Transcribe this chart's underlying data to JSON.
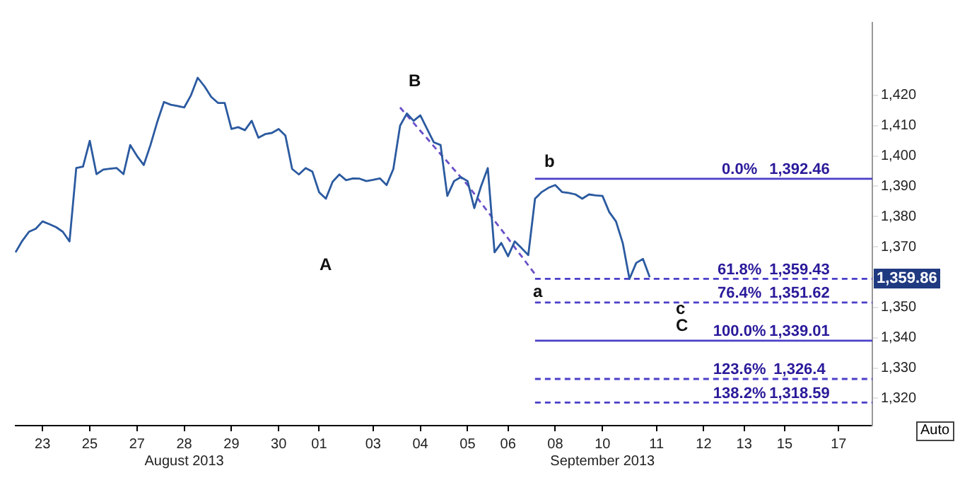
{
  "chart_data": {
    "type": "line",
    "ylim": [
      1311,
      1444
    ],
    "categories": [
      null,
      null,
      null,
      null,
      "23",
      null,
      null,
      null,
      null,
      null,
      null,
      "25",
      null,
      null,
      null,
      null,
      null,
      null,
      "27",
      null,
      null,
      null,
      null,
      null,
      null,
      "28\nAugust 2013",
      null,
      null,
      null,
      null,
      null,
      null,
      "29",
      null,
      null,
      null,
      null,
      null,
      null,
      "30",
      null,
      null,
      null,
      null,
      null,
      "01",
      null,
      null,
      null,
      null,
      null,
      null,
      null,
      "03",
      null,
      null,
      null,
      null,
      null,
      null,
      "04",
      null,
      null,
      null,
      null,
      null,
      null,
      "05",
      null,
      null,
      null,
      null,
      null,
      "06",
      null,
      null,
      null,
      null,
      null,
      null,
      "08",
      null,
      null,
      null,
      null,
      null,
      null,
      "10\nSeptember 2013",
      null,
      null,
      null,
      null,
      null,
      null,
      null,
      "11",
      null,
      null,
      null,
      null,
      null,
      null,
      "12",
      null,
      null,
      null,
      null,
      null,
      "13",
      null,
      null,
      null,
      null,
      null,
      "15",
      null,
      null,
      null,
      null,
      null,
      null,
      null,
      "17",
      null,
      null,
      null,
      null,
      null
    ],
    "yticks": [
      {
        "value": 1320,
        "label": "1,320"
      },
      {
        "value": 1330,
        "label": "1,330"
      },
      {
        "value": 1340,
        "label": "1,340"
      },
      {
        "value": 1350,
        "label": "1,350"
      },
      {
        "value": 1360,
        "label": null
      },
      {
        "value": 1370,
        "label": "1,370"
      },
      {
        "value": 1380,
        "label": "1,380"
      },
      {
        "value": 1390,
        "label": "1,390"
      },
      {
        "value": 1400,
        "label": "1,400"
      },
      {
        "value": 1410,
        "label": "1,410"
      },
      {
        "value": 1420,
        "label": "1,420"
      }
    ],
    "grid": false,
    "legend": false,
    "series": [
      {
        "color": "#2b5aa0",
        "marker": "none",
        "line_style": "solid",
        "values": [
          1368.2,
          1372,
          1375,
          1376,
          1378.4,
          1377.5,
          1376.5,
          1375,
          1371.8,
          1396,
          1396.5,
          1405,
          1394,
          1395.5,
          1395.8,
          1396,
          1394,
          1403.6,
          1400,
          1397,
          1403.6,
          1411.2,
          1417.8,
          1416.9,
          1416.5,
          1416,
          1420,
          1425.8,
          1423,
          1419.5,
          1417.5,
          1417.5,
          1408.9,
          1409.5,
          1408.5,
          1411.6,
          1406,
          1407.2,
          1407.6,
          1408.9,
          1406.7,
          1395.7,
          1393.9,
          1396,
          1394.8,
          1388,
          1385.9,
          1391.5,
          1393.9,
          1392,
          1392.6,
          1392.5,
          1391.7,
          1392.1,
          1392.6,
          1390.4,
          1395.7,
          1410,
          1414,
          1411.6,
          1413.4,
          1408.9,
          1404.5,
          1403.6,
          1386.8,
          1391.7,
          1393,
          1391.7,
          1382.8,
          1390,
          1396,
          1368.2,
          1371.3,
          1366.9,
          1371.8,
          1369.6,
          1367.3,
          1385.9,
          1388.1,
          1389.5,
          1390.4,
          1388.1,
          1387.8,
          1387.3,
          1385.9,
          1387.3,
          1387,
          1386.8,
          1381.5,
          1378.4,
          1371.3,
          1359.4,
          1364.7,
          1366,
          1360,
          null,
          null,
          null,
          null,
          null,
          null,
          null,
          null,
          null,
          null,
          null,
          null,
          null,
          null,
          null,
          null,
          null,
          null,
          null,
          null,
          null,
          null,
          null,
          null,
          null,
          null,
          null,
          null,
          null,
          null,
          null,
          null,
          null
        ]
      },
      {
        "color": "#6a4fc8",
        "marker": "none",
        "line_style": "dashed",
        "values": [
          null,
          null,
          null,
          null,
          null,
          null,
          null,
          null,
          null,
          null,
          null,
          null,
          null,
          null,
          null,
          null,
          null,
          null,
          null,
          null,
          null,
          null,
          null,
          null,
          null,
          null,
          null,
          null,
          null,
          null,
          null,
          null,
          null,
          null,
          null,
          null,
          null,
          null,
          null,
          null,
          null,
          null,
          null,
          null,
          null,
          null,
          null,
          null,
          null,
          null,
          null,
          null,
          null,
          null,
          null,
          null,
          null,
          1416,
          1413.4,
          1410.9,
          1408.3,
          1405.8,
          1403.2,
          1400.6,
          1398.1,
          1395.5,
          1393,
          1390.4,
          1387.5,
          1384.5,
          1381.6,
          1378.6,
          1375.7,
          1372.8,
          1369.8,
          1366.9,
          1363.9,
          1361,
          null,
          null,
          null,
          null,
          null,
          null,
          null,
          null,
          null,
          null,
          null,
          null,
          null,
          null,
          null,
          null,
          null,
          null,
          null,
          null,
          null,
          null,
          null,
          null,
          null,
          null,
          null,
          null,
          null,
          null,
          null,
          null,
          null,
          null,
          null,
          null,
          null,
          null,
          null,
          null,
          null,
          null,
          null,
          null,
          null,
          null,
          null,
          null,
          null,
          null
        ]
      },
      {
        "color": "#4b3fc8",
        "marker": "none",
        "line_style": "solid",
        "values": [
          null,
          null,
          null,
          null,
          null,
          null,
          null,
          null,
          null,
          null,
          null,
          null,
          null,
          null,
          null,
          null,
          null,
          null,
          null,
          null,
          null,
          null,
          null,
          null,
          null,
          null,
          null,
          null,
          null,
          null,
          null,
          null,
          null,
          null,
          null,
          null,
          null,
          null,
          null,
          null,
          null,
          null,
          null,
          null,
          null,
          null,
          null,
          null,
          null,
          null,
          null,
          null,
          null,
          null,
          null,
          null,
          null,
          null,
          null,
          null,
          null,
          null,
          null,
          null,
          null,
          null,
          null,
          null,
          null,
          null,
          null,
          null,
          null,
          null,
          null,
          null,
          null,
          1392.46,
          1392.46,
          1392.46,
          1392.46,
          1392.46,
          1392.46,
          1392.46,
          1392.46,
          1392.46,
          1392.46,
          1392.46,
          1392.46,
          1392.46,
          1392.46,
          1392.46,
          1392.46,
          1392.46,
          1392.46,
          1392.46,
          1392.46,
          1392.46,
          1392.46,
          1392.46,
          1392.46,
          1392.46,
          1392.46,
          1392.46,
          1392.46,
          1392.46,
          1392.46,
          1392.46,
          1392.46,
          1392.46,
          1392.46,
          1392.46,
          1392.46,
          1392.46,
          1392.46,
          1392.46,
          1392.46,
          1392.46,
          1392.46,
          1392.46,
          1392.46,
          1392.46,
          1392.46,
          1392.46,
          1392.46,
          1392.46,
          1392.46,
          1392.46
        ]
      },
      {
        "color": "#4b3fc8",
        "marker": "none",
        "line_style": "dashed",
        "values": [
          null,
          null,
          null,
          null,
          null,
          null,
          null,
          null,
          null,
          null,
          null,
          null,
          null,
          null,
          null,
          null,
          null,
          null,
          null,
          null,
          null,
          null,
          null,
          null,
          null,
          null,
          null,
          null,
          null,
          null,
          null,
          null,
          null,
          null,
          null,
          null,
          null,
          null,
          null,
          null,
          null,
          null,
          null,
          null,
          null,
          null,
          null,
          null,
          null,
          null,
          null,
          null,
          null,
          null,
          null,
          null,
          null,
          null,
          null,
          null,
          null,
          null,
          null,
          null,
          null,
          null,
          null,
          null,
          null,
          null,
          null,
          null,
          null,
          null,
          null,
          null,
          null,
          1359.43,
          1359.43,
          1359.43,
          1359.43,
          1359.43,
          1359.43,
          1359.43,
          1359.43,
          1359.43,
          1359.43,
          1359.43,
          1359.43,
          1359.43,
          1359.43,
          1359.43,
          1359.43,
          1359.43,
          1359.43,
          1359.43,
          1359.43,
          1359.43,
          1359.43,
          1359.43,
          1359.43,
          1359.43,
          1359.43,
          1359.43,
          1359.43,
          1359.43,
          1359.43,
          1359.43,
          1359.43,
          1359.43,
          1359.43,
          1359.43,
          1359.43,
          1359.43,
          1359.43,
          1359.43,
          1359.43,
          1359.43,
          1359.43,
          1359.43,
          1359.43,
          1359.43,
          1359.43,
          1359.43,
          1359.43,
          1359.43,
          1359.43,
          1359.43
        ]
      },
      {
        "color": "#4b3fc8",
        "marker": "none",
        "line_style": "dashed",
        "values": [
          null,
          null,
          null,
          null,
          null,
          null,
          null,
          null,
          null,
          null,
          null,
          null,
          null,
          null,
          null,
          null,
          null,
          null,
          null,
          null,
          null,
          null,
          null,
          null,
          null,
          null,
          null,
          null,
          null,
          null,
          null,
          null,
          null,
          null,
          null,
          null,
          null,
          null,
          null,
          null,
          null,
          null,
          null,
          null,
          null,
          null,
          null,
          null,
          null,
          null,
          null,
          null,
          null,
          null,
          null,
          null,
          null,
          null,
          null,
          null,
          null,
          null,
          null,
          null,
          null,
          null,
          null,
          null,
          null,
          null,
          null,
          null,
          null,
          null,
          null,
          null,
          null,
          1351.62,
          1351.62,
          1351.62,
          1351.62,
          1351.62,
          1351.62,
          1351.62,
          1351.62,
          1351.62,
          1351.62,
          1351.62,
          1351.62,
          1351.62,
          1351.62,
          1351.62,
          1351.62,
          1351.62,
          1351.62,
          1351.62,
          1351.62,
          1351.62,
          1351.62,
          1351.62,
          1351.62,
          1351.62,
          1351.62,
          1351.62,
          1351.62,
          1351.62,
          1351.62,
          1351.62,
          1351.62,
          1351.62,
          1351.62,
          1351.62,
          1351.62,
          1351.62,
          1351.62,
          1351.62,
          1351.62,
          1351.62,
          1351.62,
          1351.62,
          1351.62,
          1351.62,
          1351.62,
          1351.62,
          1351.62,
          1351.62,
          1351.62,
          1351.62
        ]
      },
      {
        "color": "#4b3fc8",
        "marker": "none",
        "line_style": "solid",
        "values": [
          null,
          null,
          null,
          null,
          null,
          null,
          null,
          null,
          null,
          null,
          null,
          null,
          null,
          null,
          null,
          null,
          null,
          null,
          null,
          null,
          null,
          null,
          null,
          null,
          null,
          null,
          null,
          null,
          null,
          null,
          null,
          null,
          null,
          null,
          null,
          null,
          null,
          null,
          null,
          null,
          null,
          null,
          null,
          null,
          null,
          null,
          null,
          null,
          null,
          null,
          null,
          null,
          null,
          null,
          null,
          null,
          null,
          null,
          null,
          null,
          null,
          null,
          null,
          null,
          null,
          null,
          null,
          null,
          null,
          null,
          null,
          null,
          null,
          null,
          null,
          null,
          null,
          1339.01,
          1339.01,
          1339.01,
          1339.01,
          1339.01,
          1339.01,
          1339.01,
          1339.01,
          1339.01,
          1339.01,
          1339.01,
          1339.01,
          1339.01,
          1339.01,
          1339.01,
          1339.01,
          1339.01,
          1339.01,
          1339.01,
          1339.01,
          1339.01,
          1339.01,
          1339.01,
          1339.01,
          1339.01,
          1339.01,
          1339.01,
          1339.01,
          1339.01,
          1339.01,
          1339.01,
          1339.01,
          1339.01,
          1339.01,
          1339.01,
          1339.01,
          1339.01,
          1339.01,
          1339.01,
          1339.01,
          1339.01,
          1339.01,
          1339.01,
          1339.01,
          1339.01,
          1339.01,
          1339.01,
          1339.01,
          1339.01,
          1339.01,
          1339.01
        ]
      },
      {
        "color": "#4b3fc8",
        "marker": "none",
        "line_style": "dashed",
        "values": [
          null,
          null,
          null,
          null,
          null,
          null,
          null,
          null,
          null,
          null,
          null,
          null,
          null,
          null,
          null,
          null,
          null,
          null,
          null,
          null,
          null,
          null,
          null,
          null,
          null,
          null,
          null,
          null,
          null,
          null,
          null,
          null,
          null,
          null,
          null,
          null,
          null,
          null,
          null,
          null,
          null,
          null,
          null,
          null,
          null,
          null,
          null,
          null,
          null,
          null,
          null,
          null,
          null,
          null,
          null,
          null,
          null,
          null,
          null,
          null,
          null,
          null,
          null,
          null,
          null,
          null,
          null,
          null,
          null,
          null,
          null,
          null,
          null,
          null,
          null,
          null,
          null,
          1326.4,
          1326.4,
          1326.4,
          1326.4,
          1326.4,
          1326.4,
          1326.4,
          1326.4,
          1326.4,
          1326.4,
          1326.4,
          1326.4,
          1326.4,
          1326.4,
          1326.4,
          1326.4,
          1326.4,
          1326.4,
          1326.4,
          1326.4,
          1326.4,
          1326.4,
          1326.4,
          1326.4,
          1326.4,
          1326.4,
          1326.4,
          1326.4,
          1326.4,
          1326.4,
          1326.4,
          1326.4,
          1326.4,
          1326.4,
          1326.4,
          1326.4,
          1326.4,
          1326.4,
          1326.4,
          1326.4,
          1326.4,
          1326.4,
          1326.4,
          1326.4,
          1326.4,
          1326.4,
          1326.4,
          1326.4,
          1326.4,
          1326.4,
          1326.4
        ]
      },
      {
        "color": "#4b3fc8",
        "marker": "none",
        "line_style": "dashed",
        "values": [
          null,
          null,
          null,
          null,
          null,
          null,
          null,
          null,
          null,
          null,
          null,
          null,
          null,
          null,
          null,
          null,
          null,
          null,
          null,
          null,
          null,
          null,
          null,
          null,
          null,
          null,
          null,
          null,
          null,
          null,
          null,
          null,
          null,
          null,
          null,
          null,
          null,
          null,
          null,
          null,
          null,
          null,
          null,
          null,
          null,
          null,
          null,
          null,
          null,
          null,
          null,
          null,
          null,
          null,
          null,
          null,
          null,
          null,
          null,
          null,
          null,
          null,
          null,
          null,
          null,
          null,
          null,
          null,
          null,
          null,
          null,
          null,
          null,
          null,
          null,
          null,
          null,
          1318.59,
          1318.59,
          1318.59,
          1318.59,
          1318.59,
          1318.59,
          1318.59,
          1318.59,
          1318.59,
          1318.59,
          1318.59,
          1318.59,
          1318.59,
          1318.59,
          1318.59,
          1318.59,
          1318.59,
          1318.59,
          1318.59,
          1318.59,
          1318.59,
          1318.59,
          1318.59,
          1318.59,
          1318.59,
          1318.59,
          1318.59,
          1318.59,
          1318.59,
          1318.59,
          1318.59,
          1318.59,
          1318.59,
          1318.59,
          1318.59,
          1318.59,
          1318.59,
          1318.59,
          1318.59,
          1318.59,
          1318.59,
          1318.59,
          1318.59,
          1318.59,
          1318.59,
          1318.59,
          1318.59,
          1318.59,
          1318.59,
          1318.59,
          1318.59
        ]
      }
    ],
    "annotations": [
      "A",
      "B",
      "b",
      "a",
      "c",
      "C",
      {
        "text": "0.0%",
        "y": 1392.46
      },
      {
        "text": "1,392.46",
        "y": 1392.46
      },
      {
        "text": "61.8%",
        "y": 1359.43
      },
      {
        "text": "1,359.43",
        "y": 1359.43
      },
      {
        "text": "76.4%",
        "y": 1351.62
      },
      {
        "text": "1,351.62",
        "y": 1351.62
      },
      {
        "text": "100.0%",
        "y": 1339.01
      },
      {
        "text": "1,339.01",
        "y": 1339.01
      },
      {
        "text": "123.6%",
        "y": 1326.4
      },
      {
        "text": "1,326.4",
        "y": 1326.4
      },
      {
        "text": "138.2%",
        "y": 1318.59
      },
      {
        "text": "1,318.59",
        "y": 1318.59
      },
      "1,359.86",
      "Auto"
    ]
  }
}
